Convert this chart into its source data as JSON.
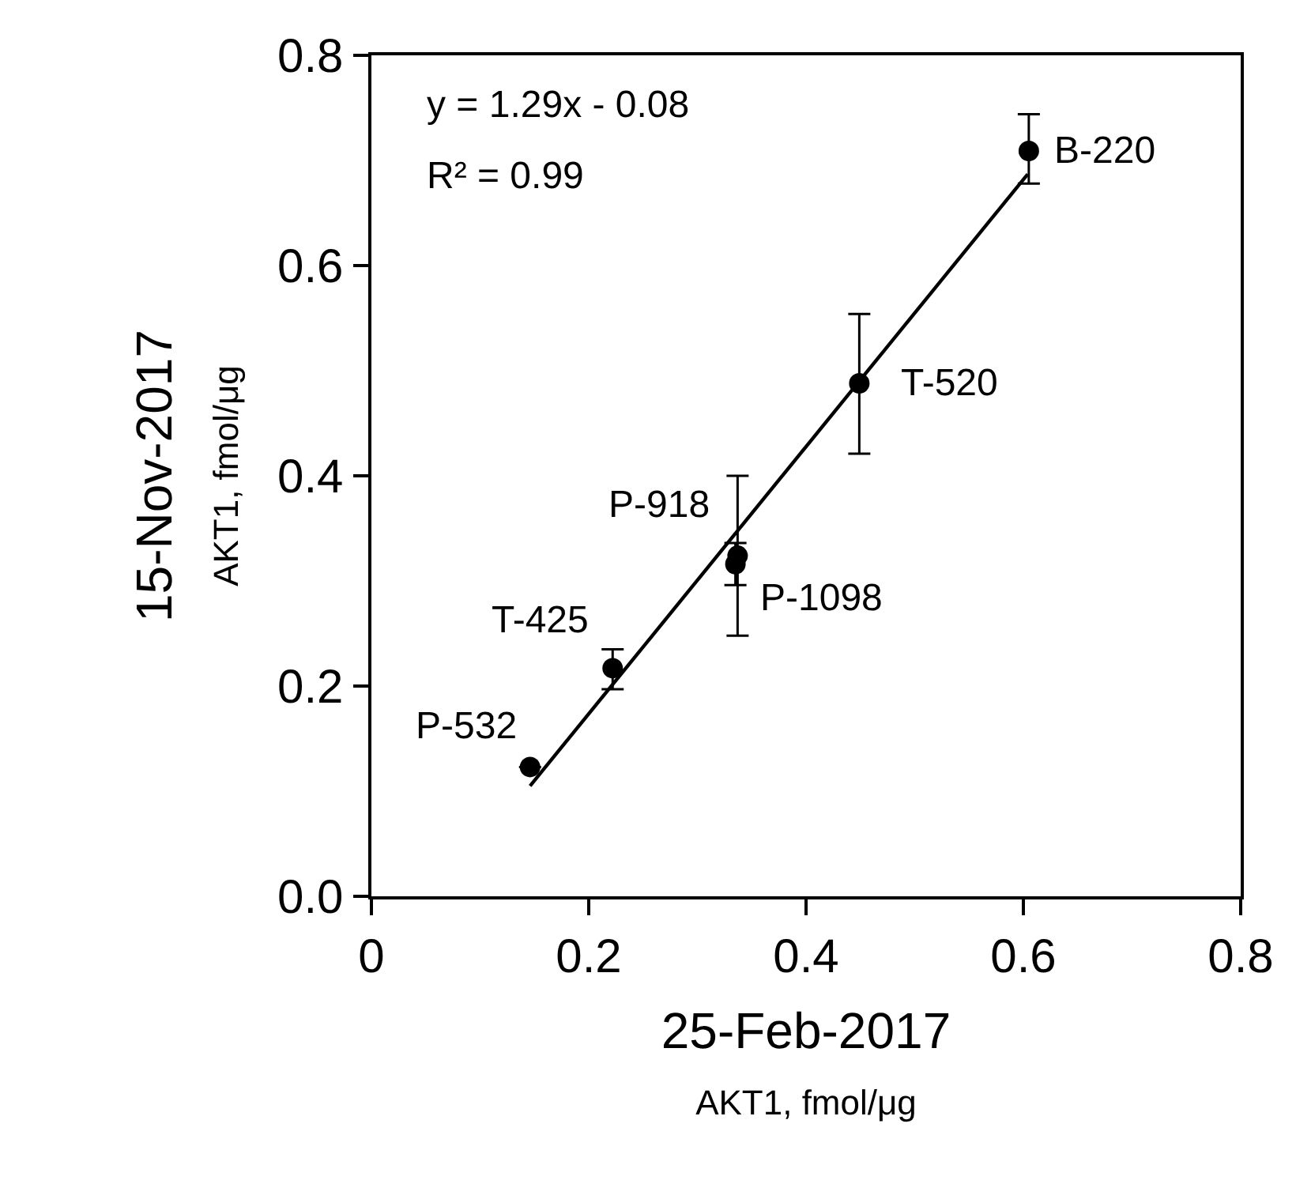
{
  "chart_data": {
    "type": "scatter",
    "xlabel": "25-Feb-2017\nAKT1, fmol/μg",
    "ylabel": "15-Nov-2017\nAKT1, fmol/μg",
    "xlim": [
      0,
      0.8
    ],
    "xticks": [
      0,
      0.2,
      0.4,
      0.6,
      0.8
    ],
    "ylim": [
      0,
      0.8
    ],
    "yticks": [
      {
        "value": 0,
        "label": "0.0"
      },
      0.2,
      0.4,
      0.6,
      0.8
    ],
    "marker": "circle",
    "series": [
      {
        "color": "#000000",
        "x": [
          0.146,
          0.222,
          0.337,
          0.335,
          0.449,
          0.605
        ],
        "values": [
          0.123,
          0.217,
          0.324,
          0.316,
          0.488,
          0.709
        ],
        "errors": [
          null,
          [
            0.197,
            0.235
          ],
          0.076,
          0.02,
          [
            0.421,
            0.554
          ],
          [
            0.678,
            0.744
          ]
        ]
      },
      {
        "type": "line",
        "marker": "none",
        "color": "#000000",
        "x": [
          0.146,
          0.604
        ],
        "values": [
          0.105,
          0.687
        ]
      }
    ],
    "annotations": [
      "y = 1.29x - 0.08",
      "R² = 0.99",
      {
        "text": "P-532",
        "x": 0.146,
        "y": 0.123
      },
      {
        "text": "T-425",
        "x": 0.222,
        "y": 0.217
      },
      {
        "text": "P-918",
        "x": 0.337,
        "y": 0.324
      },
      {
        "text": "P-1098",
        "x": 0.335,
        "y": 0.316
      },
      {
        "text": "T-520",
        "x": 0.449,
        "y": 0.488
      },
      {
        "text": "B-220",
        "x": 0.605,
        "y": 0.709
      }
    ]
  }
}
